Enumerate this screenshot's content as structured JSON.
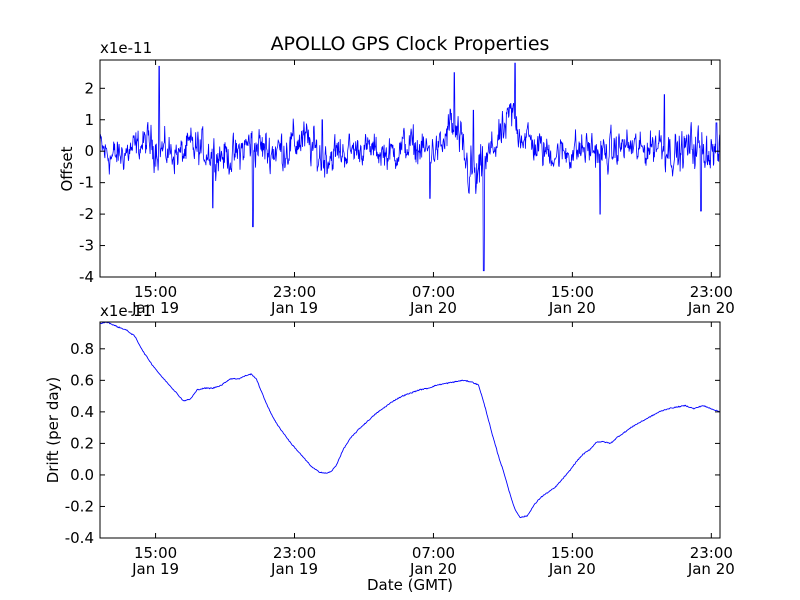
{
  "figure": {
    "title": "APOLLO GPS Clock Properties",
    "xlabel": "Date (GMT)"
  },
  "chart_data": [
    {
      "type": "line",
      "name": "offset",
      "ylabel": "Offset",
      "exponent_label": "x1e-11",
      "ylim": [
        -4,
        2.9
      ],
      "yticks": [
        "-4",
        "-3",
        "-2",
        "-1",
        "0",
        "1",
        "2"
      ],
      "ytick_values": [
        -4,
        -3,
        -2,
        -1,
        0,
        1,
        2
      ],
      "xticks": [
        {
          "line1": "15:00",
          "line2": "Jan 19",
          "t": 15
        },
        {
          "line1": "23:00",
          "line2": "Jan 19",
          "t": 23
        },
        {
          "line1": "07:00",
          "line2": "Jan 20",
          "t": 31
        },
        {
          "line1": "15:00",
          "line2": "Jan 20",
          "t": 39
        },
        {
          "line1": "23:00",
          "line2": "Jan 20",
          "t": 47
        }
      ],
      "xlim": [
        11.8,
        47.5
      ],
      "color": "#0000ff",
      "envelope": {
        "x": [
          11.8,
          12.5,
          13.5,
          14.5,
          15.0,
          15.5,
          16.5,
          17.0,
          18.0,
          19.5,
          20.5,
          21.5,
          22.5,
          23.5,
          24.5,
          26.0,
          27.0,
          28.5,
          29.5,
          30.5,
          31.5,
          32.0,
          32.5,
          33.0,
          33.5,
          34.0,
          34.5,
          35.0,
          35.5,
          36.0,
          37.0,
          38.0,
          39.0,
          40.0,
          41.0,
          42.0,
          43.0,
          44.0,
          45.0,
          46.0,
          47.0,
          47.5
        ],
        "y": [
          0.1,
          -0.2,
          0.0,
          0.3,
          0.2,
          0.0,
          -0.1,
          0.1,
          0.0,
          -0.2,
          0.3,
          0.0,
          0.1,
          0.4,
          -0.2,
          0.0,
          0.1,
          -0.1,
          0.2,
          0.0,
          0.1,
          0.9,
          0.3,
          -0.6,
          -1.0,
          -0.4,
          0.2,
          0.5,
          1.2,
          0.6,
          0.1,
          -0.1,
          0.0,
          0.1,
          -0.1,
          0.2,
          0.0,
          0.3,
          -0.1,
          0.2,
          0.0,
          -0.1
        ],
        "noise": [
          0.5,
          0.5,
          0.45,
          0.45,
          0.6,
          0.5,
          0.45,
          0.55,
          0.5,
          0.5,
          0.55,
          0.55,
          0.6,
          0.55,
          0.6,
          0.45,
          0.4,
          0.45,
          0.5,
          0.5,
          0.45,
          0.6,
          0.55,
          0.7,
          0.85,
          0.55,
          0.5,
          0.55,
          0.6,
          0.5,
          0.5,
          0.45,
          0.5,
          0.5,
          0.5,
          0.5,
          0.45,
          0.55,
          0.55,
          0.6,
          0.55,
          0.5
        ]
      },
      "spikes": [
        {
          "x": 15.2,
          "y": 2.7
        },
        {
          "x": 18.3,
          "y": -1.8
        },
        {
          "x": 20.6,
          "y": -2.4
        },
        {
          "x": 24.6,
          "y": 1.0
        },
        {
          "x": 30.8,
          "y": -1.5
        },
        {
          "x": 32.2,
          "y": 2.5
        },
        {
          "x": 33.3,
          "y": 1.3
        },
        {
          "x": 33.9,
          "y": -3.8
        },
        {
          "x": 35.7,
          "y": 2.8
        },
        {
          "x": 40.6,
          "y": -2.0
        },
        {
          "x": 44.3,
          "y": 1.8
        },
        {
          "x": 46.4,
          "y": -1.9
        },
        {
          "x": 47.3,
          "y": 0.9
        }
      ]
    },
    {
      "type": "line",
      "name": "drift",
      "ylabel": "Drift (per day)",
      "exponent_label": "x1e-11",
      "ylim": [
        -0.4,
        0.97
      ],
      "yticks": [
        "-0.4",
        "-0.2",
        "0.0",
        "0.2",
        "0.4",
        "0.6",
        "0.8"
      ],
      "ytick_values": [
        -0.4,
        -0.2,
        0.0,
        0.2,
        0.4,
        0.6,
        0.8
      ],
      "xticks": [
        {
          "line1": "15:00",
          "line2": "Jan 19",
          "t": 15
        },
        {
          "line1": "23:00",
          "line2": "Jan 19",
          "t": 23
        },
        {
          "line1": "07:00",
          "line2": "Jan 20",
          "t": 31
        },
        {
          "line1": "15:00",
          "line2": "Jan 20",
          "t": 39
        },
        {
          "line1": "23:00",
          "line2": "Jan 20",
          "t": 47
        }
      ],
      "xlim": [
        11.8,
        47.5
      ],
      "color": "#0000ff",
      "x": [
        11.8,
        12.2,
        12.8,
        13.3,
        13.8,
        14.3,
        14.8,
        15.3,
        15.8,
        16.2,
        16.6,
        17.0,
        17.4,
        17.8,
        18.3,
        18.8,
        19.3,
        19.8,
        20.2,
        20.5,
        20.8,
        21.2,
        21.6,
        22.0,
        22.4,
        22.8,
        23.2,
        23.6,
        24.0,
        24.4,
        24.8,
        25.1,
        25.4,
        25.8,
        26.2,
        26.7,
        27.2,
        27.7,
        28.2,
        28.7,
        29.2,
        29.7,
        30.2,
        30.7,
        31.2,
        31.7,
        32.2,
        32.7,
        33.2,
        33.6,
        34.0,
        34.4,
        34.8,
        35.1,
        35.4,
        35.7,
        36.0,
        36.4,
        36.8,
        37.2,
        37.6,
        38.0,
        38.4,
        38.8,
        39.2,
        39.6,
        40.0,
        40.4,
        40.8,
        41.2,
        41.6,
        42.0,
        42.5,
        43.0,
        43.5,
        44.0,
        44.5,
        45.0,
        45.5,
        46.0,
        46.5,
        47.0,
        47.5
      ],
      "y": [
        0.96,
        0.97,
        0.94,
        0.92,
        0.88,
        0.78,
        0.7,
        0.63,
        0.57,
        0.52,
        0.47,
        0.48,
        0.54,
        0.55,
        0.55,
        0.57,
        0.61,
        0.61,
        0.63,
        0.64,
        0.61,
        0.5,
        0.4,
        0.32,
        0.26,
        0.2,
        0.15,
        0.1,
        0.05,
        0.02,
        0.01,
        0.02,
        0.06,
        0.16,
        0.23,
        0.29,
        0.34,
        0.39,
        0.43,
        0.47,
        0.5,
        0.52,
        0.54,
        0.55,
        0.57,
        0.58,
        0.59,
        0.6,
        0.59,
        0.57,
        0.42,
        0.25,
        0.1,
        0.0,
        -0.12,
        -0.22,
        -0.27,
        -0.26,
        -0.19,
        -0.14,
        -0.11,
        -0.08,
        -0.03,
        0.02,
        0.08,
        0.13,
        0.16,
        0.21,
        0.21,
        0.2,
        0.24,
        0.27,
        0.31,
        0.34,
        0.37,
        0.4,
        0.42,
        0.43,
        0.44,
        0.42,
        0.44,
        0.42,
        0.4
      ]
    }
  ]
}
